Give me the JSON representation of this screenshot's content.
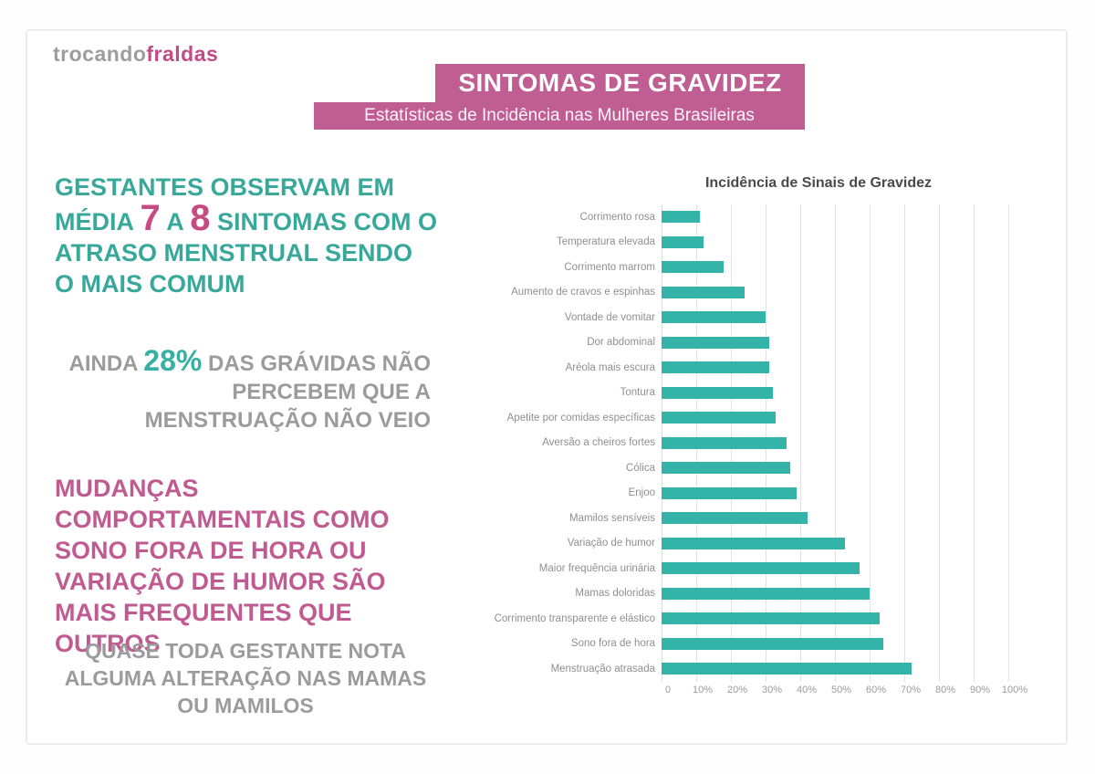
{
  "logo": {
    "part1": "trocando",
    "part2": "fraldas"
  },
  "banner": {
    "title": "SINTOMAS DE GRAVIDEZ",
    "subtitle": "Estatísticas de Incidência nas Mulheres Brasileiras"
  },
  "highlights": {
    "block1": {
      "pre": "GESTANTES OBSERVAM EM MÉDIA ",
      "num1": "7",
      "mid": " A ",
      "num2": "8",
      "post": " SINTOMAS COM O ATRASO MENSTRUAL SENDO O MAIS COMUM"
    },
    "block2": {
      "pre": "AINDA ",
      "stat": "28%",
      "post": " DAS GRÁVIDAS NÃO PERCEBEM QUE A MENSTRUAÇÃO NÃO VEIO"
    },
    "block3": {
      "text": "MUDANÇAS COMPORTAMENTAIS COMO SONO FORA DE HORA OU VARIAÇÃO DE HUMOR SÃO MAIS FREQUENTES QUE OUTROS"
    },
    "block4": {
      "text": "QUASE TODA GESTANTE NOTA ALGUMA ALTERAÇÃO NAS MAMAS OU MAMILOS"
    }
  },
  "colors": {
    "teal_text": "#38a89a",
    "teal_bar": "#34b3a8",
    "pink": "#c05d93",
    "pink_accent": "#c64b82",
    "gray_text": "#9b9b9b"
  },
  "chart_data": {
    "type": "bar",
    "orientation": "horizontal",
    "title": "Incidência de Sinais de Gravidez",
    "unit": "%",
    "xlim": [
      0,
      100
    ],
    "grid": true,
    "legend": false,
    "x_ticks": [
      "0",
      "10%",
      "20%",
      "30%",
      "40%",
      "50%",
      "60%",
      "70%",
      "80%",
      "90%",
      "100%"
    ],
    "categories": [
      "Corrimento rosa",
      "Temperatura elevada",
      "Corrimento marrom",
      "Aumento de cravos e espinhas",
      "Vontade de vomitar",
      "Dor abdominal",
      "Aréola mais escura",
      "Tontura",
      "Apetite por comidas específicas",
      "Aversão a cheiros fortes",
      "Cólica",
      "Enjoo",
      "Mamilos sensíveis",
      "Variação de humor",
      "Maior frequência urinária",
      "Mamas doloridas",
      "Corrimento transparente e elástico",
      "Sono fora de hora",
      "Menstruação atrasada"
    ],
    "values": [
      11,
      12,
      18,
      24,
      30,
      31,
      31,
      32,
      33,
      36,
      37,
      39,
      42,
      53,
      57,
      60,
      63,
      64,
      72
    ]
  }
}
